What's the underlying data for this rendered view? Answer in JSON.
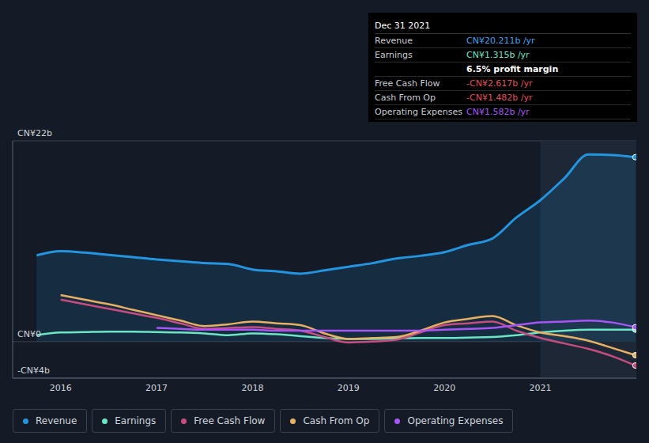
{
  "chart_data": {
    "type": "line",
    "x": [
      2015.75,
      2016.0,
      2016.25,
      2016.5,
      2016.75,
      2017.0,
      2017.25,
      2017.5,
      2017.75,
      2018.0,
      2018.25,
      2018.5,
      2018.75,
      2019.0,
      2019.25,
      2019.5,
      2019.75,
      2020.0,
      2020.25,
      2020.5,
      2020.75,
      2021.0,
      2021.25,
      2021.5,
      2021.75,
      2021.99
    ],
    "xlim": [
      2015.5,
      2022
    ],
    "xticks": [
      2016,
      2017,
      2018,
      2019,
      2020,
      2021
    ],
    "ylim": [
      -4,
      22
    ],
    "yticks": [
      {
        "value": -4,
        "label": "-CN¥4b"
      },
      {
        "value": 0,
        "label": "CN¥0"
      },
      {
        "value": 22,
        "label": "CN¥22b"
      }
    ],
    "grid": true,
    "legend": "bottom left",
    "series": [
      {
        "name": "Revenue",
        "color": "#2394df",
        "type": "area",
        "values": [
          9.45,
          9.9,
          9.75,
          9.5,
          9.25,
          9.0,
          8.8,
          8.6,
          8.5,
          7.9,
          7.7,
          7.45,
          7.8,
          8.2,
          8.6,
          9.1,
          9.4,
          9.8,
          10.6,
          11.3,
          13.6,
          15.5,
          17.9,
          20.5,
          20.45,
          20.211
        ]
      },
      {
        "name": "Earnings",
        "color": "#6ce5c5",
        "type": "line",
        "values": [
          0.7,
          1.0,
          1.05,
          1.1,
          1.1,
          1.05,
          1.0,
          0.9,
          0.7,
          0.9,
          0.8,
          0.6,
          0.4,
          0.3,
          0.3,
          0.35,
          0.4,
          0.4,
          0.45,
          0.5,
          0.7,
          1.0,
          1.2,
          1.3,
          1.3,
          1.315
        ]
      },
      {
        "name": "Free Cash Flow",
        "color": "#c74c80",
        "type": "line",
        "values": [
          null,
          4.6,
          4.1,
          3.6,
          3.1,
          2.6,
          2.0,
          1.4,
          1.5,
          1.6,
          1.4,
          1.2,
          0.5,
          -0.1,
          0.0,
          0.2,
          1.0,
          1.8,
          2.0,
          2.2,
          1.2,
          0.4,
          -0.2,
          -0.8,
          -1.6,
          -2.617
        ]
      },
      {
        "name": "Cash From Op",
        "color": "#e8b063",
        "type": "line",
        "values": [
          null,
          5.1,
          4.6,
          4.1,
          3.5,
          2.9,
          2.3,
          1.7,
          1.9,
          2.2,
          2.0,
          1.8,
          0.9,
          0.3,
          0.4,
          0.5,
          1.2,
          2.1,
          2.5,
          2.8,
          1.8,
          1.0,
          0.6,
          0.1,
          -0.7,
          -1.482
        ]
      },
      {
        "name": "Operating Expenses",
        "color": "#a855f7",
        "type": "line",
        "values": [
          null,
          null,
          null,
          null,
          null,
          1.5,
          1.4,
          1.3,
          1.3,
          1.3,
          1.2,
          1.2,
          1.2,
          1.2,
          1.2,
          1.2,
          1.2,
          1.3,
          1.4,
          1.5,
          1.8,
          2.1,
          2.2,
          2.3,
          2.1,
          1.582
        ]
      }
    ],
    "annotation_box": {
      "title": "Dec 31 2021",
      "rows": [
        {
          "label": "Revenue",
          "value": "CN¥20.211b /yr",
          "color": "#3ba4f0"
        },
        {
          "label": "Earnings",
          "value": "CN¥1.315b /yr",
          "color": "#6ce5c5"
        },
        {
          "label": null,
          "value": "6.5% profit margin",
          "color": "#ffffff"
        },
        {
          "label": "Free Cash Flow",
          "value": "-CN¥2.617b /yr",
          "color": "#e64c5c"
        },
        {
          "label": "Cash From Op",
          "value": "-CN¥1.482b /yr",
          "color": "#e64c5c"
        },
        {
          "label": "Operating Expenses",
          "value": "CN¥1.582b /yr",
          "color": "#a855f7"
        }
      ]
    }
  }
}
